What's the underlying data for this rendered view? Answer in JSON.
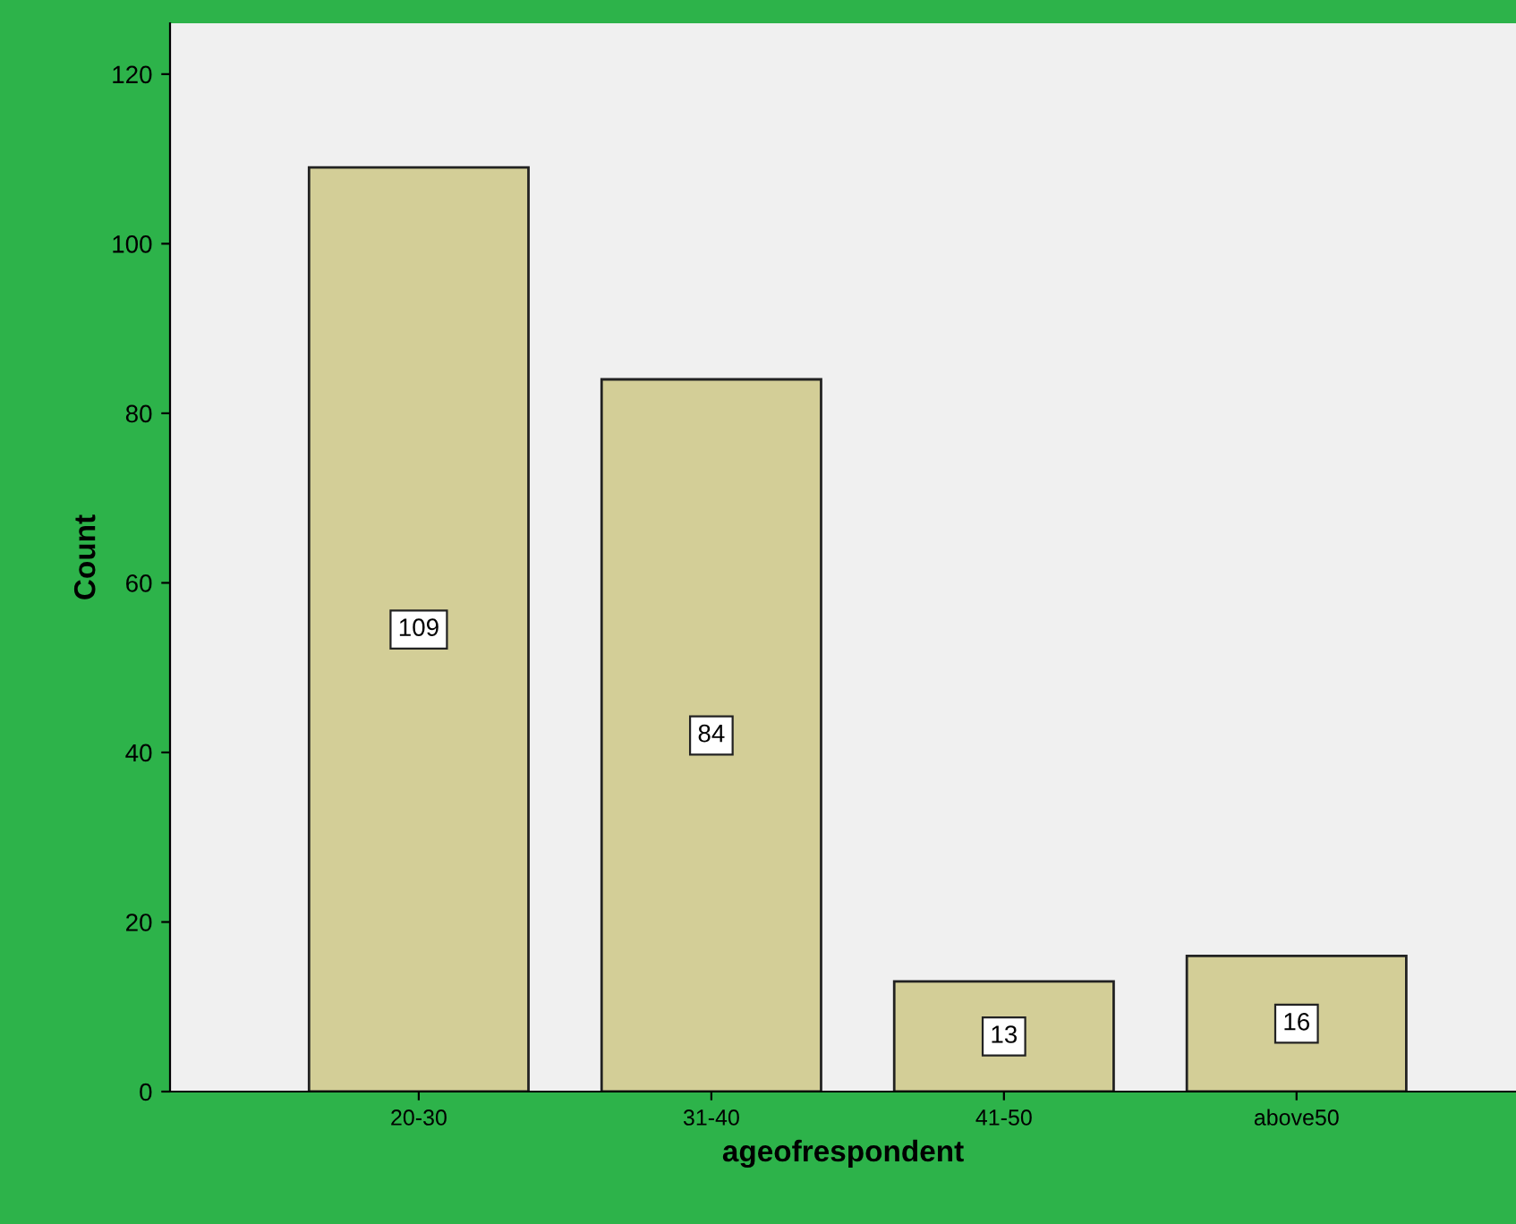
{
  "chart_data": {
    "type": "bar",
    "xlabel": "ageofrespondent",
    "ylabel": "Count",
    "categories": [
      "20-30",
      "31-40",
      "41-50",
      "above50"
    ],
    "values": [
      109,
      84,
      13,
      16
    ],
    "color": "#d3ce97",
    "ylim": [
      0,
      126
    ],
    "yticks": [
      0,
      20,
      40,
      60,
      80,
      100,
      120
    ],
    "data_labels": true,
    "grid": false,
    "legend": false
  }
}
